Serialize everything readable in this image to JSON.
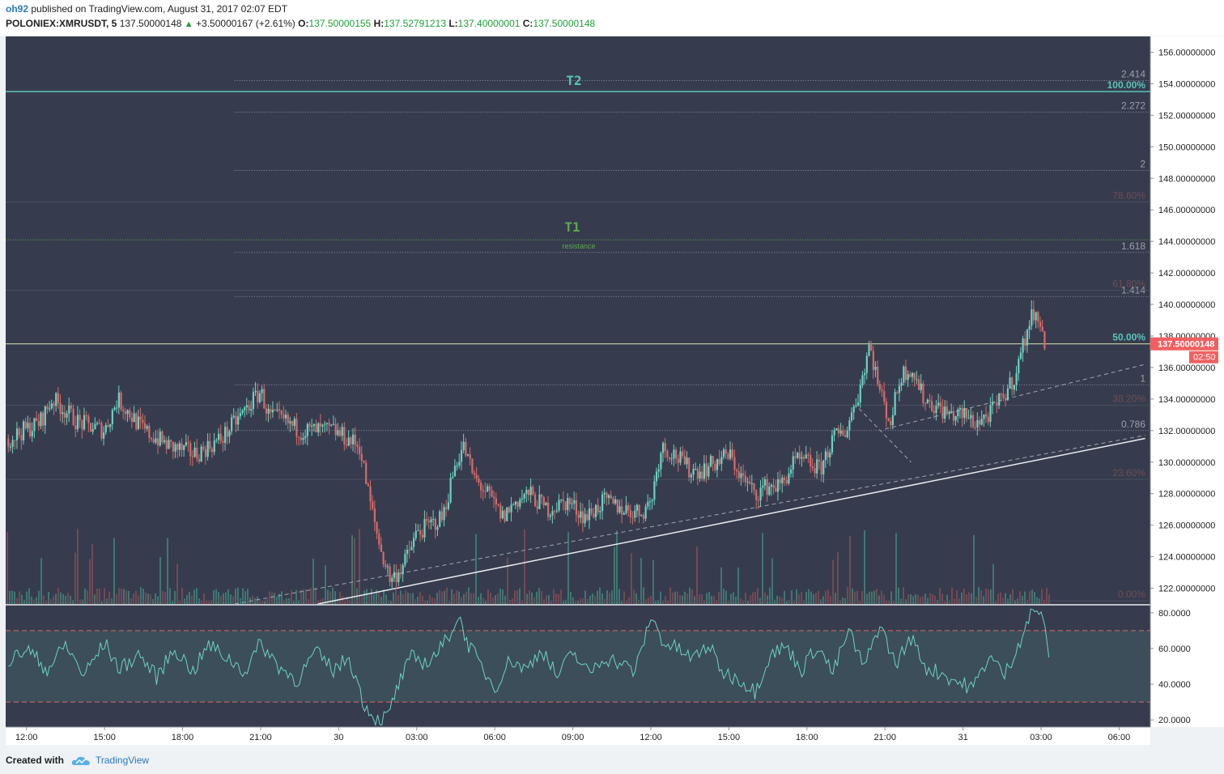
{
  "header": {
    "author": "oh92",
    "published": "published on TradingView.com, August 31, 2017 02:07 EDT",
    "symbol": "POLONIEX:XMRUSDT, 5",
    "last_price": "137.50000148",
    "change": "+3.50000167 (+2.61%)",
    "open_label": "O:",
    "open": "137.50000155",
    "high_label": "H:",
    "high": "137.52791213",
    "low_label": "L:",
    "low": "137.40000001",
    "close_label": "C:",
    "close": "137.50000148"
  },
  "footer": {
    "created_with": "Created with",
    "brand": "TradingView"
  },
  "colors": {
    "background": "#363c4e",
    "up": "#6bd3c0",
    "down": "#d86a6a",
    "target": "#5bc4b8",
    "t1": "#5ea84e",
    "fib_ext": "#9aa0a8",
    "fib_ret": "#6b4e55",
    "current_price": "#f16060"
  },
  "annotations": {
    "t2": "T2",
    "t1": "T1",
    "t1_note": "resistance",
    "price_tag": "137.50000148",
    "countdown": "02:50"
  },
  "chart_data": [
    {
      "type": "candlestick",
      "ylim": [
        121,
        157
      ],
      "y_ticks": [
        "156.00000000",
        "154.00000000",
        "152.00000000",
        "150.00000000",
        "148.00000000",
        "146.00000000",
        "144.00000000",
        "142.00000000",
        "140.00000000",
        "138.00000000",
        "136.00000000",
        "134.00000000",
        "132.00000000",
        "130.00000000",
        "128.00000000",
        "126.00000000",
        "124.00000000",
        "122.00000000"
      ],
      "y_tick_values": [
        156,
        154,
        152,
        150,
        148,
        146,
        144,
        142,
        140,
        138,
        136,
        134,
        132,
        130,
        128,
        126,
        124,
        122
      ],
      "x_ticks": [
        "12:00",
        "15:00",
        "18:00",
        "21:00",
        "30",
        "03:00",
        "06:00",
        "09:00",
        "12:00",
        "15:00",
        "18:00",
        "21:00",
        "31",
        "03:00",
        "06:00"
      ],
      "x_tick_hours": [
        12,
        15,
        18,
        21,
        24,
        27,
        30,
        33,
        36,
        39,
        42,
        45,
        48,
        51,
        54
      ],
      "x_range_hours": [
        11.2,
        55.2
      ],
      "price_path": [
        [
          11.3,
          131.5
        ],
        [
          12.5,
          132.5
        ],
        [
          13.0,
          134.0
        ],
        [
          14.0,
          132.5
        ],
        [
          15.0,
          132.0
        ],
        [
          15.5,
          134.0
        ],
        [
          16.5,
          132.0
        ],
        [
          17.5,
          131.0
        ],
        [
          18.5,
          130.5
        ],
        [
          19.5,
          131.5
        ],
        [
          20.5,
          133.5
        ],
        [
          21.0,
          134.5
        ],
        [
          21.3,
          133.0
        ],
        [
          22.0,
          132.5
        ],
        [
          22.5,
          132.0
        ],
        [
          23.0,
          132.0
        ],
        [
          23.8,
          132.0
        ],
        [
          24.3,
          131.5
        ],
        [
          24.8,
          131.0
        ],
        [
          25.2,
          127.5
        ],
        [
          25.6,
          124.5
        ],
        [
          26.0,
          122.5
        ],
        [
          26.5,
          123.5
        ],
        [
          27.0,
          125.5
        ],
        [
          27.5,
          126.0
        ],
        [
          28.0,
          126.5
        ],
        [
          28.5,
          130.0
        ],
        [
          28.8,
          131.0
        ],
        [
          29.2,
          129.0
        ],
        [
          29.7,
          128.0
        ],
        [
          30.3,
          126.5
        ],
        [
          30.8,
          127.5
        ],
        [
          31.3,
          128.0
        ],
        [
          32.0,
          127.0
        ],
        [
          32.8,
          127.5
        ],
        [
          33.5,
          126.5
        ],
        [
          34.2,
          127.5
        ],
        [
          35.0,
          127.0
        ],
        [
          35.6,
          126.8
        ],
        [
          36.0,
          127.5
        ],
        [
          36.4,
          131.0
        ],
        [
          36.9,
          130.5
        ],
        [
          37.5,
          129.5
        ],
        [
          38.0,
          129.5
        ],
        [
          38.5,
          130.0
        ],
        [
          39.0,
          130.5
        ],
        [
          39.5,
          129.0
        ],
        [
          40.0,
          128.0
        ],
        [
          40.5,
          128.5
        ],
        [
          41.0,
          128.5
        ],
        [
          41.5,
          130.0
        ],
        [
          42.0,
          130.0
        ],
        [
          42.5,
          129.5
        ],
        [
          43.0,
          131.5
        ],
        [
          43.5,
          132.0
        ],
        [
          44.0,
          134.5
        ],
        [
          44.4,
          137.5
        ],
        [
          44.8,
          134.5
        ],
        [
          45.2,
          132.5
        ],
        [
          45.6,
          135.5
        ],
        [
          46.0,
          136.0
        ],
        [
          46.5,
          134.0
        ],
        [
          47.0,
          133.5
        ],
        [
          47.5,
          133.0
        ],
        [
          48.0,
          133.0
        ],
        [
          48.5,
          132.5
        ],
        [
          49.0,
          133.0
        ],
        [
          49.5,
          134.0
        ],
        [
          50.0,
          135.5
        ],
        [
          50.4,
          138.0
        ],
        [
          50.8,
          140.0
        ],
        [
          51.0,
          138.0
        ],
        [
          51.2,
          137.5
        ]
      ],
      "overlay": {
        "current_price": 137.50000148,
        "t2_level": 153.5,
        "t1_level": 144.1,
        "trendline": [
          [
            23.2,
            121.0
          ],
          [
            55.0,
            131.5
          ]
        ],
        "dashed_lines": [
          [
            [
              20.0,
              121.0
            ],
            [
              55.0,
              131.7
            ]
          ],
          [
            [
              45.0,
              132.1
            ],
            [
              55.0,
              136.2
            ]
          ],
          [
            [
              44.0,
              133.4
            ],
            [
              46.0,
              130.0
            ]
          ]
        ],
        "fib_extension": [
          {
            "label": "2.414",
            "value": 154.2
          },
          {
            "label": "2.272",
            "value": 152.2
          },
          {
            "label": "2",
            "value": 148.5
          },
          {
            "label": "1.618",
            "value": 143.3
          },
          {
            "label": "1.414",
            "value": 140.5
          },
          {
            "label": "1",
            "value": 134.9
          },
          {
            "label": "0.786",
            "value": 132.0
          }
        ],
        "fib_retracement": [
          {
            "label": "100.00%",
            "value": 153.5
          },
          {
            "label": "78.60%",
            "value": 146.5
          },
          {
            "label": "61.80%",
            "value": 140.9
          },
          {
            "label": "50.00%",
            "value": 137.5
          },
          {
            "label": "38.20%",
            "value": 133.6
          },
          {
            "label": "23.60%",
            "value": 128.9
          },
          {
            "label": "0.00%",
            "value": 121.2
          }
        ]
      }
    },
    {
      "type": "line",
      "ylim": [
        16,
        84
      ],
      "y_ticks": [
        "80.0000",
        "60.0000",
        "40.0000",
        "20.0000"
      ],
      "y_tick_values": [
        80,
        60,
        40,
        20
      ],
      "bands": [
        30,
        70
      ],
      "series": [
        {
          "x": [
            11.3,
            12.0,
            12.8,
            13.5,
            14.2,
            15.0,
            15.6,
            16.3,
            17.0,
            17.7,
            18.4,
            19.0,
            19.7,
            20.4,
            21.0,
            21.7,
            22.4,
            23.1,
            23.8,
            24.4,
            25.0,
            25.5,
            25.9,
            26.3,
            26.8,
            27.4,
            28.0,
            28.6,
            29.0,
            29.4,
            30.0,
            30.6,
            31.2,
            31.8,
            32.4,
            33.0,
            33.6,
            34.2,
            34.8,
            35.4,
            36.0,
            36.5,
            37.0,
            37.6,
            38.2,
            38.8,
            39.4,
            40.0,
            40.6,
            41.2,
            41.8,
            42.4,
            43.0,
            43.6,
            44.2,
            44.8,
            45.4,
            46.0,
            46.6,
            47.2,
            47.8,
            48.4,
            49.0,
            49.6,
            50.2,
            50.6,
            51.0,
            51.3
          ],
          "values": [
            52,
            60,
            48,
            62,
            45,
            63,
            48,
            57,
            44,
            60,
            47,
            62,
            55,
            47,
            63,
            50,
            42,
            58,
            48,
            55,
            28,
            20,
            22,
            40,
            55,
            52,
            61,
            78,
            62,
            52,
            38,
            54,
            48,
            60,
            44,
            58,
            46,
            55,
            52,
            47,
            78,
            63,
            60,
            54,
            62,
            46,
            43,
            36,
            57,
            61,
            48,
            62,
            46,
            70,
            49,
            74,
            51,
            66,
            49,
            46,
            41,
            38,
            56,
            45,
            65,
            79,
            82,
            55
          ]
        }
      ]
    }
  ]
}
